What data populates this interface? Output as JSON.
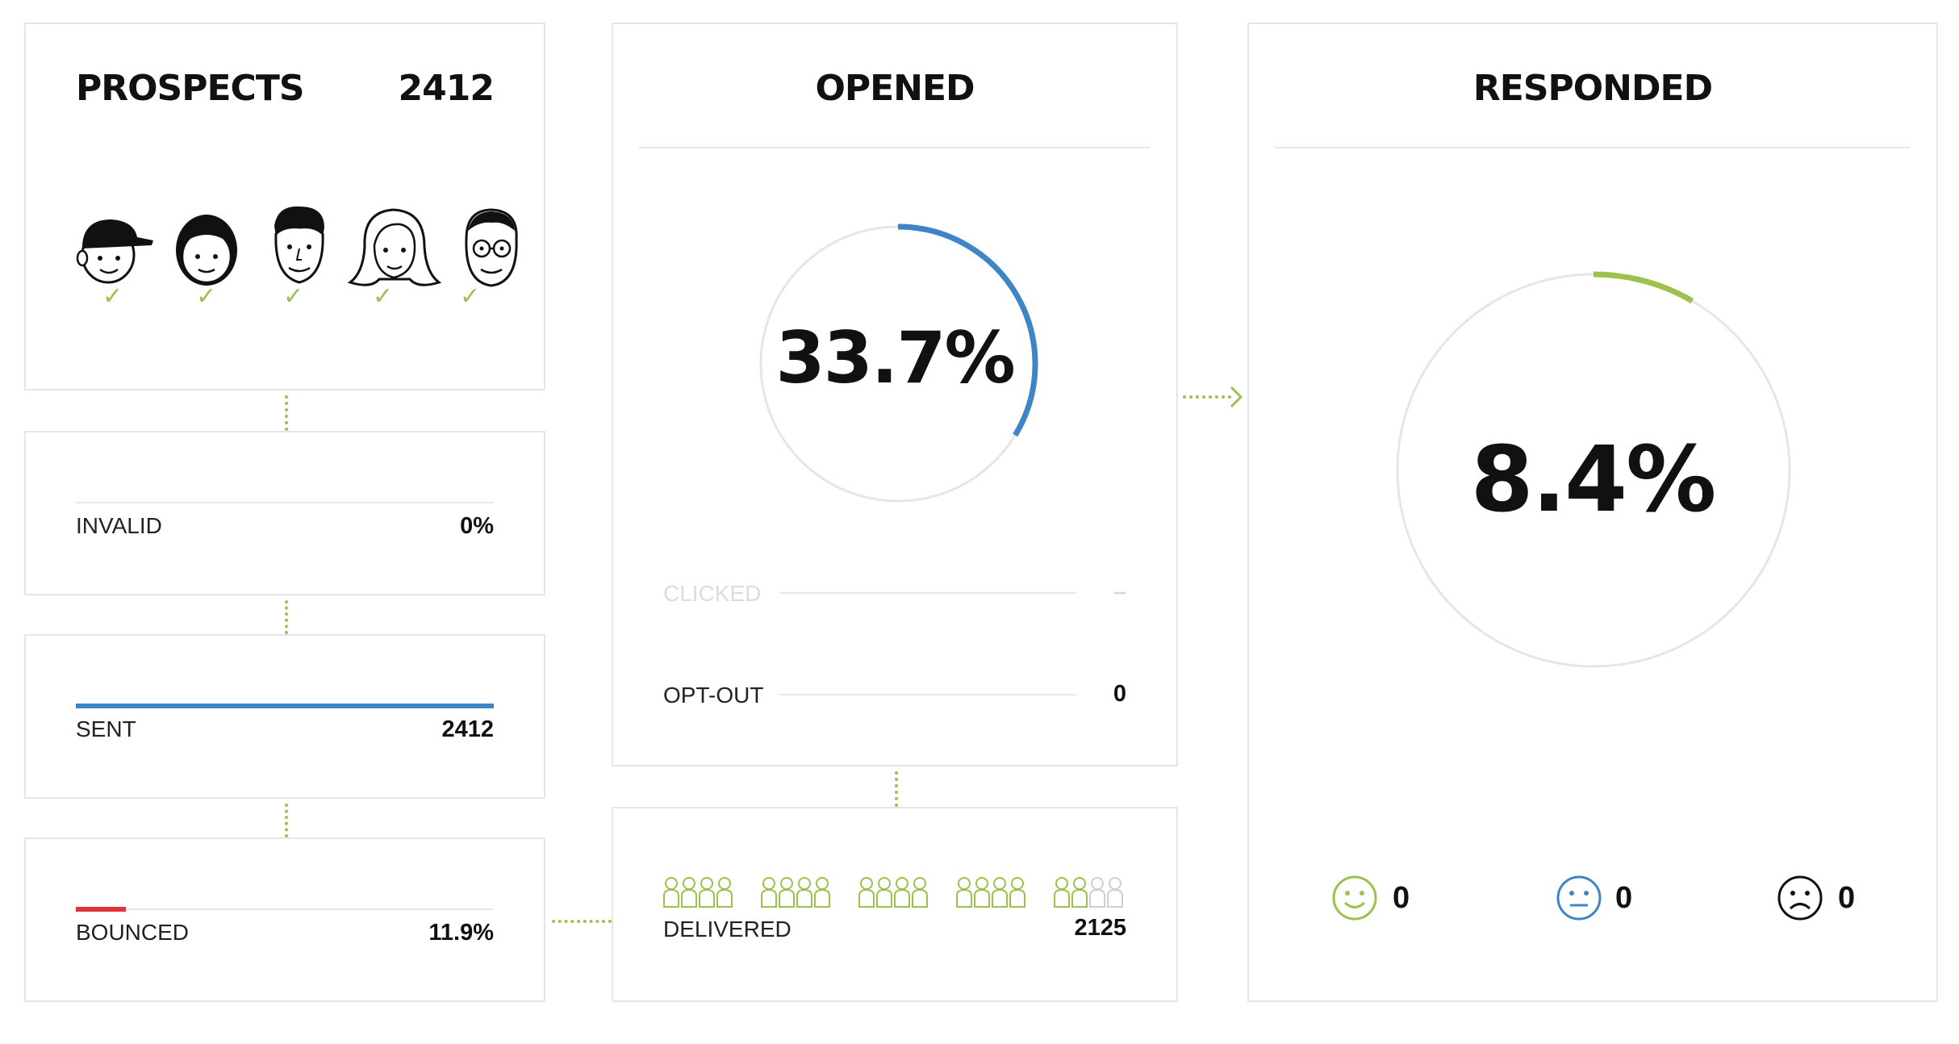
{
  "prospects": {
    "title": "PROSPECTS",
    "count": "2412",
    "avatars": [
      "cap-boy-face-icon",
      "girl-face-icon",
      "man-face-icon",
      "long-hair-woman-face-icon",
      "glasses-man-face-icon"
    ],
    "check_glyph": "✓"
  },
  "invalid": {
    "label": "INVALID",
    "value": "0%",
    "bar_fraction": 0
  },
  "sent": {
    "label": "SENT",
    "value": "2412",
    "bar_fraction": 1.0
  },
  "bounced": {
    "label": "BOUNCED",
    "value": "11.9%",
    "bar_fraction": 0.119
  },
  "delivered": {
    "label": "DELIVERED",
    "value": "2125",
    "groups": 5,
    "per_group": 4,
    "filled_total": 18
  },
  "opened": {
    "title": "OPENED",
    "percent": "33.7%",
    "fraction": 0.337,
    "clicked_label": "CLICKED",
    "clicked_value": "–",
    "optout_label": "OPT-OUT",
    "optout_value": "0"
  },
  "responded": {
    "title": "RESPONDED",
    "percent": "8.4%",
    "fraction": 0.084,
    "positive": "0",
    "neutral": "0",
    "negative": "0"
  },
  "colors": {
    "accent_green": "#9bc24f",
    "blue": "#3d85c6",
    "red": "#e0313d",
    "border": "#e6e6e6",
    "track": "#e6e6e6",
    "muted": "#d9d9d9"
  }
}
